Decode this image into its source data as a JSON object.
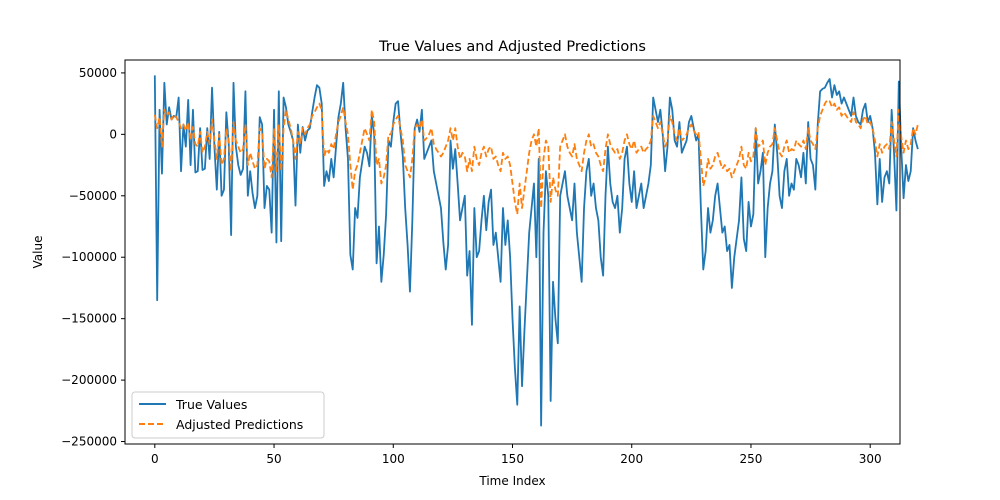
{
  "chart_data": {
    "type": "line",
    "title": "True Values and Adjusted Predictions",
    "xlabel": "Time Index",
    "ylabel": "Value",
    "xlim": [
      -12.5,
      312.5
    ],
    "ylim": [
      -252000,
      60500
    ],
    "xticks": [
      0,
      50,
      100,
      150,
      200,
      250,
      300
    ],
    "xtick_labels": [
      "0",
      "50",
      "100",
      "150",
      "200",
      "250",
      "300"
    ],
    "yticks": [
      50000,
      0,
      -50000,
      -100000,
      -150000,
      -200000,
      -250000
    ],
    "ytick_labels": [
      "50000",
      "0",
      "−50000",
      "−100000",
      "−150000",
      "−200000",
      "−250000"
    ],
    "grid": false,
    "legend_position": "lower-left",
    "x_start": 0,
    "x_step": 1,
    "series": [
      {
        "name": "True Values",
        "color": "#1f77b4",
        "style": "solid",
        "values": [
          48000,
          -135000,
          20000,
          -32000,
          42000,
          8000,
          22000,
          12000,
          15000,
          14000,
          30000,
          -30000,
          8000,
          -10000,
          28000,
          -25000,
          20000,
          -31000,
          -30000,
          5000,
          -29000,
          -28000,
          5000,
          -20000,
          38000,
          -10000,
          -45000,
          2000,
          -50000,
          -45000,
          18000,
          -8000,
          -82000,
          42000,
          -10000,
          -25000,
          -33000,
          -28000,
          35000,
          -50000,
          -30000,
          -48000,
          -60000,
          -50000,
          14000,
          8000,
          -60000,
          -42000,
          -45000,
          -80000,
          20000,
          -88000,
          35000,
          -87000,
          30000,
          22000,
          8000,
          2000,
          -5000,
          -58000,
          8000,
          -15000,
          6000,
          -5000,
          3000,
          5000,
          18000,
          30000,
          40000,
          38000,
          25000,
          -42000,
          -30000,
          -38000,
          -20000,
          -35000,
          -10000,
          14000,
          25000,
          42000,
          5000,
          -20000,
          -98000,
          -110000,
          -60000,
          -68000,
          -35000,
          -22000,
          -10000,
          -15000,
          -26000,
          15000,
          0,
          -105000,
          -75000,
          -120000,
          -98000,
          -65000,
          -5000,
          -10000,
          10000,
          25000,
          27000,
          2000,
          -18000,
          -60000,
          -90000,
          -128000,
          -70000,
          5000,
          12000,
          2000,
          20000,
          -20000,
          -15000,
          -10000,
          -5000,
          -30000,
          -40000,
          -50000,
          -60000,
          -88000,
          -110000,
          -90000,
          -5000,
          -28000,
          -12000,
          -40000,
          -70000,
          -60000,
          -50000,
          -115000,
          -95000,
          -155000,
          -60000,
          -100000,
          -95000,
          -70000,
          -50000,
          -78000,
          -55000,
          -45000,
          -90000,
          -80000,
          -100000,
          -120000,
          -60000,
          -90000,
          -70000,
          -100000,
          -150000,
          -190000,
          -220000,
          -140000,
          -205000,
          -160000,
          -120000,
          -80000,
          -60000,
          -40000,
          -100000,
          -20000,
          -237000,
          -80000,
          -30000,
          -50000,
          -217000,
          -120000,
          -150000,
          -170000,
          -50000,
          -40000,
          -30000,
          -50000,
          -60000,
          -70000,
          -40000,
          -80000,
          -100000,
          -120000,
          -60000,
          -30000,
          -20000,
          -50000,
          -40000,
          -60000,
          -70000,
          -100000,
          -115000,
          -50000,
          -10000,
          -40000,
          -55000,
          -60000,
          -50000,
          -80000,
          -60000,
          -20000,
          -10000,
          -40000,
          -55000,
          -30000,
          -60000,
          -50000,
          -40000,
          -60000,
          -50000,
          -40000,
          -25000,
          30000,
          20000,
          10000,
          20000,
          0,
          -30000,
          -10000,
          30000,
          20000,
          -5000,
          -10000,
          10000,
          -15000,
          -10000,
          -5000,
          10000,
          15000,
          5000,
          -5000,
          0,
          -60000,
          -110000,
          -95000,
          -60000,
          -80000,
          -70000,
          -50000,
          -40000,
          -60000,
          -80000,
          -75000,
          -95000,
          -90000,
          -125000,
          -100000,
          -85000,
          -70000,
          -35000,
          -85000,
          -95000,
          -55000,
          -75000,
          -65000,
          5000,
          -40000,
          -30000,
          -15000,
          -100000,
          -60000,
          -40000,
          -30000,
          8000,
          -15000,
          -50000,
          -60000,
          -30000,
          -20000,
          -50000,
          -40000,
          -45000,
          -20000,
          -25000,
          -35000,
          -15000,
          -40000,
          10000,
          -20000,
          -25000,
          -45000,
          8000,
          35000,
          37000,
          38000,
          42000,
          45000,
          30000,
          40000,
          32000,
          35000,
          25000,
          30000,
          25000,
          20000,
          15000,
          30000,
          15000,
          10000,
          8000,
          20000,
          25000,
          10000,
          15000,
          5000,
          -15000,
          -57000,
          -20000,
          -55000,
          -35000,
          -30000,
          -40000,
          20000,
          -15000,
          -62000,
          43000,
          -10000,
          -52000,
          -25000,
          -38000,
          -30000,
          5000,
          -5000,
          -12000
        ]
      },
      {
        "name": "Adjusted Predictions",
        "color": "#ff7f0e",
        "style": "dashed",
        "values": [
          16000,
          5000,
          14000,
          -10000,
          20000,
          15000,
          18000,
          12000,
          16000,
          14000,
          10000,
          5000,
          8000,
          3000,
          10000,
          -5000,
          6000,
          -8000,
          -10000,
          2000,
          -15000,
          -10000,
          2000,
          -8000,
          12000,
          -5000,
          -20000,
          0,
          -25000,
          -20000,
          5000,
          -5000,
          -30000,
          10000,
          -5000,
          -10000,
          -15000,
          -12000,
          8000,
          -25000,
          -15000,
          -22000,
          -28000,
          -25000,
          5000,
          2000,
          -28000,
          -20000,
          -22000,
          -35000,
          5000,
          -30000,
          8000,
          -30000,
          5000,
          20000,
          12000,
          5000,
          -5000,
          -20000,
          2000,
          -8000,
          5000,
          0,
          5000,
          8000,
          15000,
          18000,
          22000,
          25000,
          20000,
          -18000,
          -12000,
          -15000,
          -8000,
          -12000,
          0,
          10000,
          15000,
          22000,
          10000,
          0,
          -25000,
          -45000,
          -30000,
          -25000,
          -15000,
          -5000,
          5000,
          0,
          -5000,
          20000,
          10000,
          -25000,
          -20000,
          -40000,
          -35000,
          -25000,
          0,
          0,
          8000,
          12000,
          15000,
          5000,
          -5000,
          -25000,
          -30000,
          -35000,
          -20000,
          5000,
          8000,
          5000,
          12000,
          -5000,
          -3000,
          0,
          5000,
          -8000,
          -12000,
          -15000,
          -18000,
          -15000,
          -10000,
          -5000,
          5000,
          -5000,
          5000,
          -10000,
          -20000,
          -15000,
          -18000,
          -30000,
          -20000,
          -30000,
          -10000,
          -20000,
          -25000,
          -15000,
          -10000,
          -18000,
          -12000,
          -10000,
          -20000,
          -18000,
          -25000,
          -30000,
          -15000,
          -20000,
          -18000,
          -25000,
          -40000,
          -55000,
          -65000,
          -40000,
          -60000,
          -45000,
          -30000,
          -15000,
          -5000,
          0,
          -10000,
          5000,
          -60000,
          -20000,
          -5000,
          -10000,
          -55000,
          -35000,
          -45000,
          -50000,
          -10000,
          -5000,
          0,
          -10000,
          -15000,
          -18000,
          -8000,
          -20000,
          -25000,
          -30000,
          -15000,
          -5000,
          0,
          -10000,
          -8000,
          -15000,
          -18000,
          -25000,
          -30000,
          -12000,
          0,
          -8000,
          -12000,
          -15000,
          -12000,
          -20000,
          -15000,
          -5000,
          0,
          -8000,
          -12000,
          -5000,
          -15000,
          -12000,
          -10000,
          -15000,
          -12000,
          -10000,
          -5000,
          15000,
          10000,
          5000,
          10000,
          0,
          -10000,
          -5000,
          15000,
          10000,
          0,
          -5000,
          5000,
          -5000,
          -3000,
          0,
          5000,
          8000,
          3000,
          0,
          2000,
          -20000,
          -42000,
          -35000,
          -20000,
          -28000,
          -25000,
          -18000,
          -15000,
          -22000,
          -28000,
          -25000,
          -30000,
          -28000,
          -35000,
          -30000,
          -25000,
          -20000,
          -10000,
          -25000,
          -28000,
          -15000,
          -22000,
          -18000,
          5000,
          -10000,
          -8000,
          -5000,
          -25000,
          -15000,
          -10000,
          -8000,
          5000,
          -5000,
          -15000,
          -18000,
          -10000,
          -5000,
          -15000,
          -12000,
          -13000,
          -5000,
          -8000,
          -10000,
          -5000,
          -12000,
          5000,
          -5000,
          -8000,
          -12000,
          5000,
          15000,
          20000,
          25000,
          28000,
          27000,
          22000,
          25000,
          20000,
          22000,
          15000,
          18000,
          15000,
          12000,
          10000,
          18000,
          10000,
          8000,
          5000,
          12000,
          15000,
          8000,
          10000,
          5000,
          -5000,
          -18000,
          -8000,
          -15000,
          -10000,
          -8000,
          -12000,
          10000,
          -5000,
          -18000,
          20000,
          -2000,
          -15000,
          -5000,
          -12000,
          -8000,
          5000,
          0,
          8000
        ]
      }
    ]
  }
}
